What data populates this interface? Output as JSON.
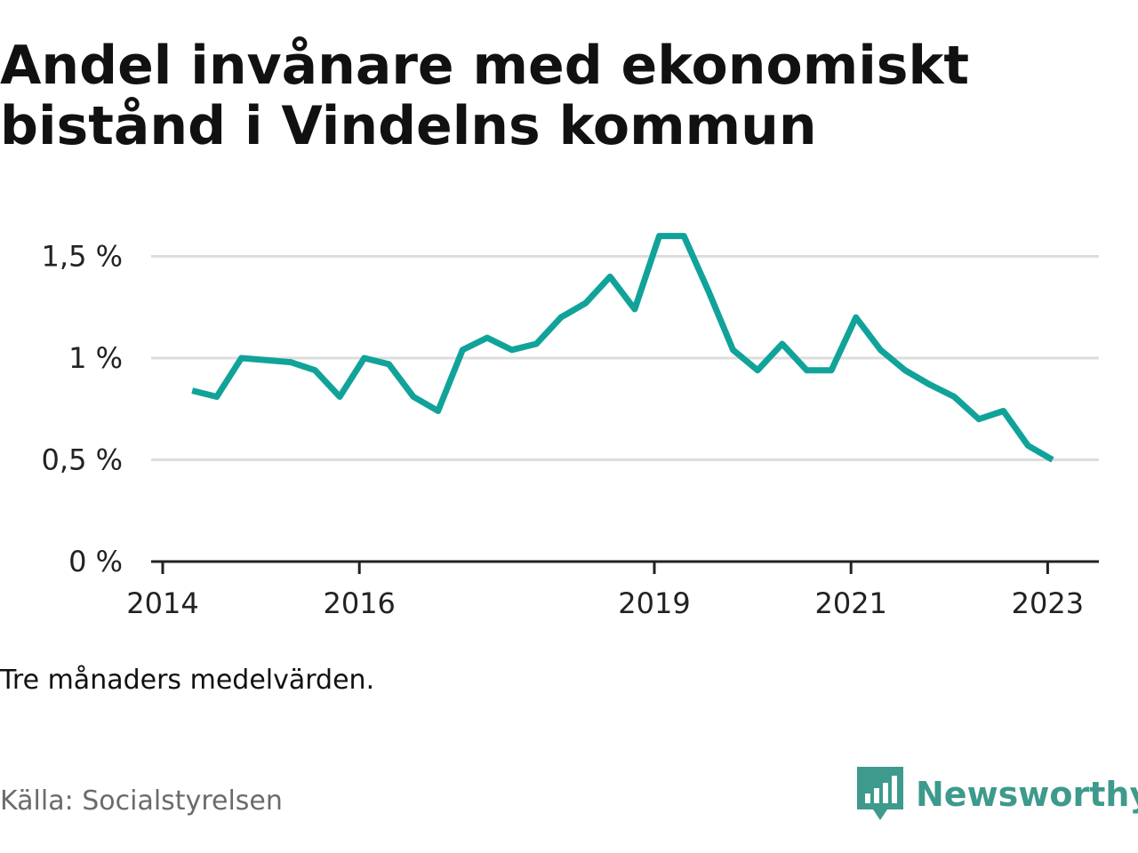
{
  "title": "Andel invånare med ekonomiskt bistånd i Vindelns kommun",
  "note": "Tre månaders medelvärden.",
  "source": "Källa: Socialstyrelsen",
  "brand": {
    "name": "Newsworthy",
    "icon": "newsworthy-bar-chart-logo",
    "color": "#3d9a8c"
  },
  "colors": {
    "line": "#11a39a",
    "grid": "#dddddd",
    "axis": "#222222"
  },
  "chart_data": {
    "type": "line",
    "title": "Andel invånare med ekonomiskt bistånd i Vindelns kommun",
    "xlabel": "",
    "ylabel": "",
    "grid": true,
    "legend": "none",
    "ylim": [
      0,
      1.6
    ],
    "y_ticks": [
      0,
      0.5,
      1,
      1.5
    ],
    "y_tick_labels": [
      "0 %",
      "0,5 %",
      "1 %",
      "1,5 %"
    ],
    "x_ticks": [
      2014,
      2016,
      2019,
      2021,
      2023
    ],
    "x_tick_labels": [
      "2014",
      "2016",
      "2019",
      "2021",
      "2023"
    ],
    "xlim": [
      2014,
      2023.5
    ],
    "series": [
      {
        "name": "",
        "x": [
          2014.3,
          2014.55,
          2014.8,
          2015.05,
          2015.3,
          2015.55,
          2015.8,
          2016.05,
          2016.3,
          2016.55,
          2016.8,
          2017.05,
          2017.3,
          2017.55,
          2017.8,
          2018.05,
          2018.3,
          2018.55,
          2018.8,
          2019.05,
          2019.3,
          2019.55,
          2019.8,
          2020.05,
          2020.3,
          2020.55,
          2020.8,
          2021.05,
          2021.3,
          2021.55,
          2021.8,
          2022.05,
          2022.3,
          2022.55,
          2022.8,
          2023.05
        ],
        "values": [
          0.84,
          0.81,
          1.0,
          0.99,
          0.98,
          0.94,
          0.81,
          1.0,
          0.97,
          0.81,
          0.74,
          1.04,
          1.1,
          1.04,
          1.07,
          1.2,
          1.27,
          1.4,
          1.24,
          1.6,
          1.6,
          1.33,
          1.04,
          0.94,
          1.07,
          0.94,
          0.94,
          1.2,
          1.04,
          0.94,
          0.87,
          0.81,
          0.7,
          0.74,
          0.57,
          0.5
        ]
      }
    ]
  }
}
